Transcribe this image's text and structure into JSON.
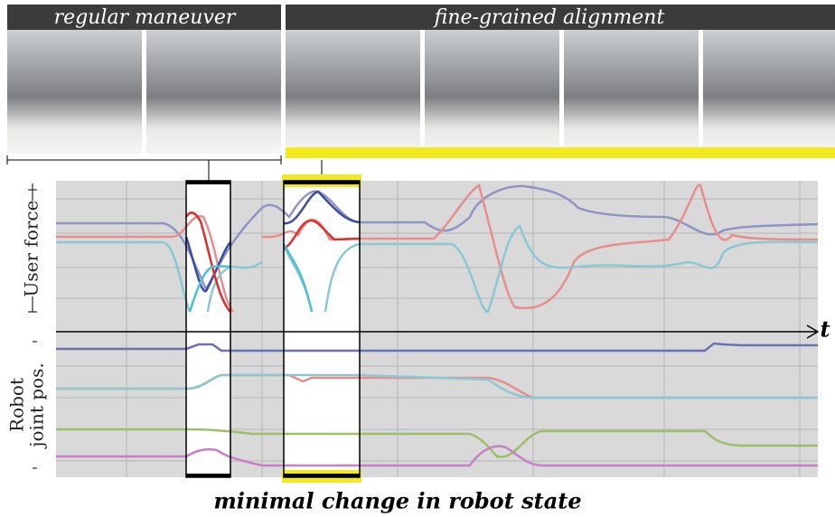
{
  "header": {
    "left": "regular maneuver",
    "right": "fine-grained alignment"
  },
  "plot": {
    "upper_label": "User force",
    "lower_label_line1": "Robot",
    "lower_label_line2": "joint pos.",
    "time_axis": "t"
  },
  "caption": "minimal change in robot state"
}
